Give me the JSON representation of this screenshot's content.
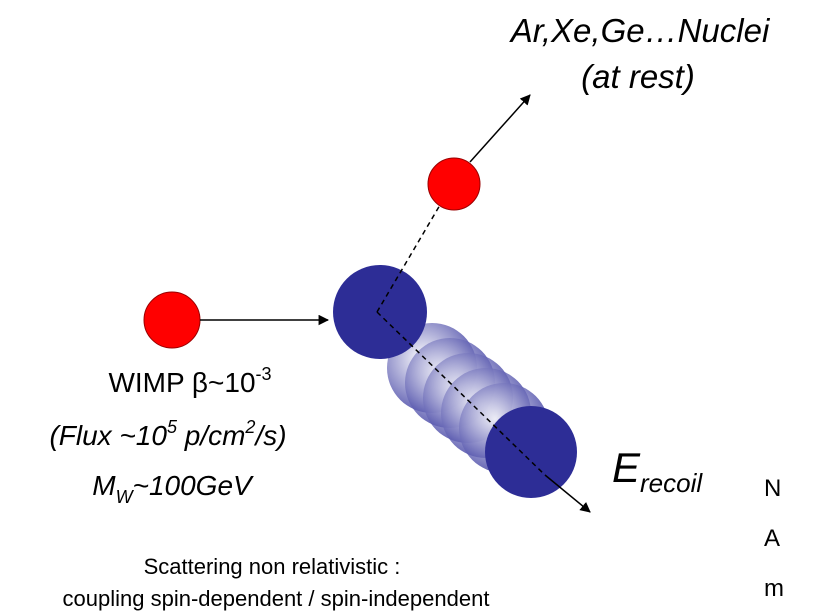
{
  "nuclei": {
    "line1": "Ar,Xe,Ge…Nuclei",
    "line2": "(at rest)"
  },
  "wimp": {
    "label": "WIMP β~10",
    "label_sup": "-3",
    "flux": [
      "(Flux ~10",
      "5",
      " p/cm",
      "2",
      "/s)"
    ],
    "mass": [
      "M",
      "W",
      "~100GeV"
    ]
  },
  "recoil": {
    "main": "E",
    "sub": "recoil"
  },
  "caption": {
    "line1": "Scattering  non relativistic :",
    "line2": "coupling spin-dependent / spin-independent"
  },
  "cut_text": [
    "N",
    "A",
    "m"
  ]
}
